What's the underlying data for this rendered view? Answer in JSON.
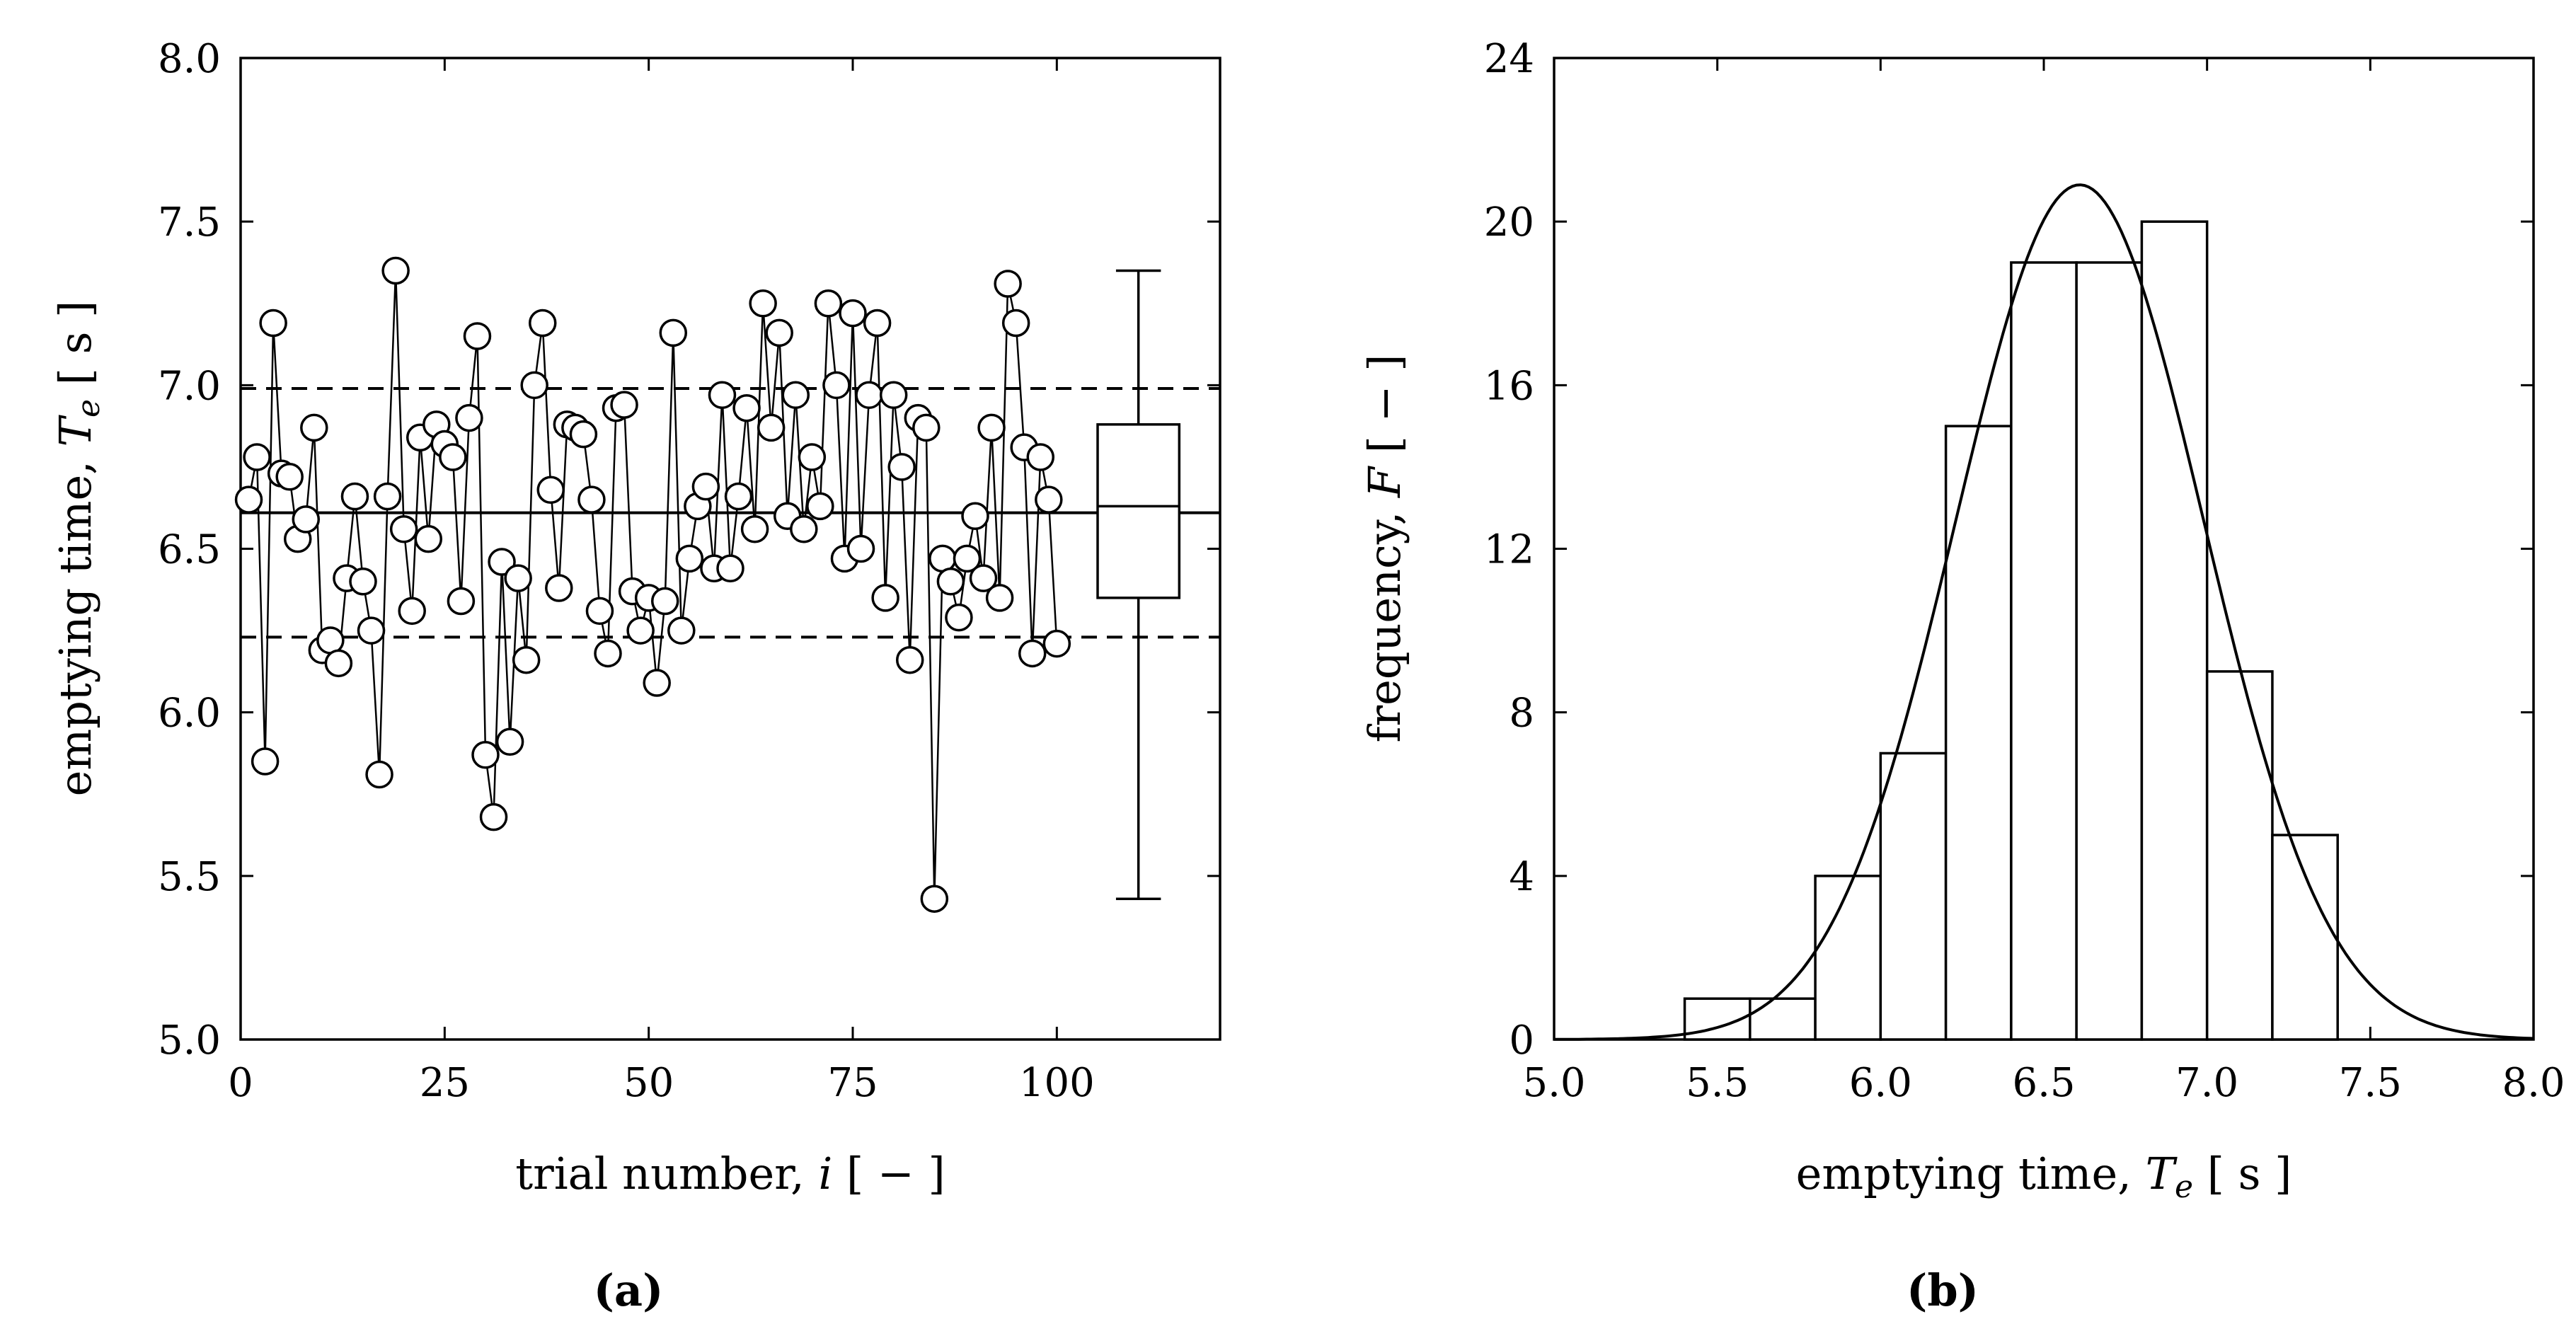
{
  "chart_data": [
    {
      "panel": "(a)",
      "type": "scatter",
      "xlabel": {
        "text": "trial number, ",
        "var": "i",
        "unit": " [ − ]"
      },
      "ylabel": {
        "text": "emptying time, ",
        "var": "T",
        "sub": "e",
        "unit": " [ s ]"
      },
      "xlim": [
        0,
        120
      ],
      "ylim": [
        5.0,
        8.0
      ],
      "xticks": [
        0,
        25,
        50,
        75,
        100
      ],
      "yticks": [
        "5.0",
        "5.5",
        "6.0",
        "6.5",
        "7.0",
        "7.5",
        "8.0"
      ],
      "grid": false,
      "x": [
        1,
        2,
        3,
        4,
        5,
        6,
        7,
        8,
        9,
        10,
        11,
        12,
        13,
        14,
        15,
        16,
        17,
        18,
        19,
        20,
        21,
        22,
        23,
        24,
        25,
        26,
        27,
        28,
        29,
        30,
        31,
        32,
        33,
        34,
        35,
        36,
        37,
        38,
        39,
        40,
        41,
        42,
        43,
        44,
        45,
        46,
        47,
        48,
        49,
        50,
        51,
        52,
        53,
        54,
        55,
        56,
        57,
        58,
        59,
        60,
        61,
        62,
        63,
        64,
        65,
        66,
        67,
        68,
        69,
        70,
        71,
        72,
        73,
        74,
        75,
        76,
        77,
        78,
        79,
        80,
        81,
        82,
        83,
        84,
        85,
        86,
        87,
        88,
        89,
        90,
        91,
        92,
        93,
        94,
        95,
        96,
        97,
        98,
        99,
        100
      ],
      "y": [
        6.65,
        6.78,
        5.85,
        7.19,
        6.73,
        6.72,
        6.53,
        6.59,
        6.87,
        6.19,
        6.22,
        6.15,
        6.41,
        6.66,
        6.4,
        6.25,
        5.81,
        6.66,
        7.35,
        6.56,
        6.31,
        6.84,
        6.53,
        6.88,
        6.82,
        6.78,
        6.34,
        6.9,
        7.15,
        5.87,
        5.68,
        6.46,
        5.91,
        6.41,
        6.16,
        7.0,
        7.19,
        6.68,
        6.38,
        6.88,
        6.87,
        6.85,
        6.65,
        6.31,
        6.18,
        6.93,
        6.94,
        6.37,
        6.25,
        6.35,
        6.09,
        6.34,
        7.16,
        6.25,
        6.47,
        6.63,
        6.69,
        6.44,
        6.97,
        6.44,
        6.66,
        6.93,
        6.56,
        7.25,
        6.87,
        7.16,
        6.6,
        6.97,
        6.56,
        6.78,
        6.63,
        7.25,
        7.0,
        6.47,
        7.22,
        6.5,
        6.97,
        7.19,
        6.35,
        6.97,
        6.75,
        6.16,
        6.9,
        6.87,
        5.43,
        6.47,
        6.4,
        6.29,
        6.47,
        6.6,
        6.41,
        6.87,
        6.35,
        7.31,
        7.19,
        6.81,
        6.18,
        6.78,
        6.65,
        6.21
      ],
      "mean": 6.61,
      "std_band": [
        6.23,
        6.99
      ],
      "boxplot": {
        "x_center": 110,
        "x_half_width": 5,
        "whisker_low": 5.43,
        "q1": 6.35,
        "median": 6.63,
        "q3": 6.88,
        "whisker_high": 7.35
      }
    },
    {
      "panel": "(b)",
      "type": "bar",
      "xlabel": {
        "text": "emptying time, ",
        "var": "T",
        "sub": "e",
        "unit": " [ s ]"
      },
      "ylabel": {
        "text": "frequency, ",
        "var": "F",
        "unit": " [ − ]"
      },
      "xlim": [
        5.0,
        8.0
      ],
      "ylim": [
        0,
        24
      ],
      "xticks": [
        "5.0",
        "5.5",
        "6.0",
        "6.5",
        "7.0",
        "7.5",
        "8.0"
      ],
      "yticks": [
        "0",
        "4",
        "8",
        "12",
        "16",
        "20",
        "24"
      ],
      "grid": false,
      "bins": [
        {
          "from": 5.4,
          "to": 5.6,
          "count": 1
        },
        {
          "from": 5.6,
          "to": 5.8,
          "count": 1
        },
        {
          "from": 5.8,
          "to": 6.0,
          "count": 4
        },
        {
          "from": 6.0,
          "to": 6.2,
          "count": 7
        },
        {
          "from": 6.2,
          "to": 6.4,
          "count": 15
        },
        {
          "from": 6.4,
          "to": 6.6,
          "count": 19
        },
        {
          "from": 6.6,
          "to": 6.8,
          "count": 19
        },
        {
          "from": 6.8,
          "to": 7.0,
          "count": 20
        },
        {
          "from": 7.0,
          "to": 7.2,
          "count": 9
        },
        {
          "from": 7.2,
          "to": 7.4,
          "count": 5
        }
      ],
      "normal_fit": {
        "mean": 6.61,
        "sd": 0.38,
        "peak": 20.9
      }
    }
  ]
}
